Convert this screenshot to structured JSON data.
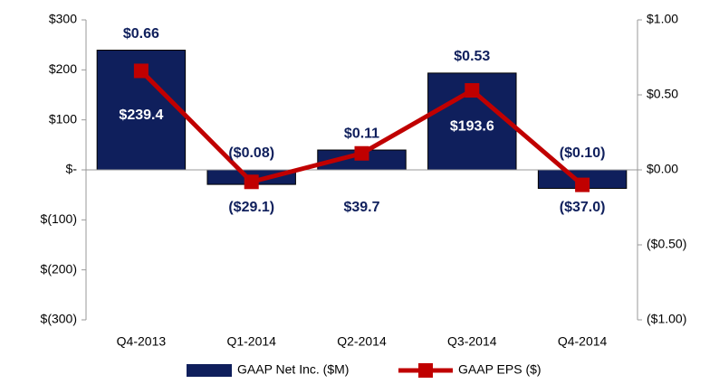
{
  "chart_data": {
    "type": "bar_line",
    "categories": [
      "Q4-2013",
      "Q1-2014",
      "Q2-2014",
      "Q3-2014",
      "Q4-2014"
    ],
    "series": [
      {
        "name": "GAAP Net Inc. ($M)",
        "color": "#0f1f5c",
        "values": [
          239.4,
          -29.1,
          39.7,
          193.6,
          -37.0
        ],
        "value_labels": [
          "$239.4",
          "($29.1)",
          "$39.7",
          "$193.6",
          "($37.0)"
        ]
      },
      {
        "name": "GAAP EPS ($)",
        "color": "#c00000",
        "axis": "y2",
        "values": [
          0.66,
          -0.08,
          0.11,
          0.53,
          -0.1
        ],
        "value_labels": [
          "$0.66",
          "($0.08)",
          "$0.11",
          "$0.53",
          "($0.10)"
        ]
      }
    ],
    "ylim": [
      -300,
      300
    ],
    "yticks": [
      {
        "value": 300,
        "label": "$300"
      },
      {
        "value": 200,
        "label": "$200"
      },
      {
        "value": 100,
        "label": "$100"
      },
      {
        "value": 0,
        "label": "$-"
      },
      {
        "value": -100,
        "label": "$(100)"
      },
      {
        "value": -200,
        "label": "$(200)"
      },
      {
        "value": -300,
        "label": "$(300)"
      }
    ],
    "y2lim": [
      -1,
      1
    ],
    "y2ticks": [
      {
        "value": 1,
        "label": "$1.00"
      },
      {
        "value": 0.5,
        "label": "$0.50"
      },
      {
        "value": 0,
        "label": "$0.00"
      },
      {
        "value": -0.5,
        "label": "($0.50)"
      },
      {
        "value": -1,
        "label": "($1.00)"
      }
    ],
    "legend": "bottom"
  }
}
